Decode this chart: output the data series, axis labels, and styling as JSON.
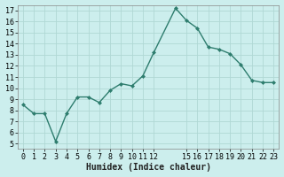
{
  "x": [
    0,
    1,
    2,
    3,
    4,
    5,
    6,
    7,
    8,
    9,
    10,
    11,
    12,
    14,
    15,
    16,
    17,
    18,
    19,
    20,
    21,
    22,
    23
  ],
  "y": [
    8.5,
    7.7,
    7.7,
    5.2,
    7.7,
    9.2,
    9.2,
    8.7,
    9.8,
    10.4,
    10.2,
    11.1,
    13.2,
    17.2,
    16.1,
    15.4,
    13.7,
    13.5,
    13.1,
    12.1,
    10.7,
    10.5,
    10.5
  ],
  "line_color": "#2e7d6e",
  "marker": "D",
  "marker_size": 2.0,
  "linewidth": 1.0,
  "xlabel": "Humidex (Indice chaleur)",
  "xlabel_fontsize": 7,
  "tick_fontsize": 6,
  "bg_color": "#cceeed",
  "grid_color": "#b0d8d5",
  "xlim": [
    -0.5,
    23.5
  ],
  "ylim": [
    4.5,
    17.5
  ],
  "yticks": [
    5,
    6,
    7,
    8,
    9,
    10,
    11,
    12,
    13,
    14,
    15,
    16,
    17
  ],
  "xticks": [
    0,
    1,
    2,
    3,
    4,
    5,
    6,
    7,
    8,
    9,
    10,
    11,
    12,
    15,
    16,
    17,
    18,
    19,
    20,
    21,
    22,
    23
  ],
  "xtick_labels": [
    "0",
    "1",
    "2",
    "3",
    "4",
    "5",
    "6",
    "7",
    "8",
    "9",
    "10",
    "11",
    "12",
    "15",
    "16",
    "17",
    "18",
    "19",
    "20",
    "21",
    "22",
    "23"
  ]
}
